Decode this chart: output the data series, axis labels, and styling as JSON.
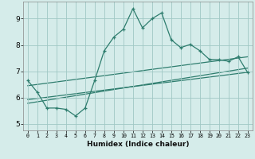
{
  "xlabel": "Humidex (Indice chaleur)",
  "background_color": "#d5ecea",
  "grid_color": "#a0c8c4",
  "line_color": "#2e7d6e",
  "xlim": [
    -0.5,
    23.5
  ],
  "ylim": [
    4.75,
    9.65
  ],
  "xticks": [
    0,
    1,
    2,
    3,
    4,
    5,
    6,
    7,
    8,
    9,
    10,
    11,
    12,
    13,
    14,
    15,
    16,
    17,
    18,
    19,
    20,
    21,
    22,
    23
  ],
  "yticks": [
    5,
    6,
    7,
    8,
    9
  ],
  "line1_x": [
    0,
    1,
    2,
    3,
    4,
    5,
    6,
    7,
    8,
    9,
    10,
    11,
    12,
    13,
    14,
    15,
    16,
    17,
    18,
    19,
    20,
    21,
    22,
    23
  ],
  "line1_y": [
    6.65,
    6.2,
    5.6,
    5.6,
    5.55,
    5.3,
    5.6,
    6.65,
    7.78,
    8.3,
    8.6,
    9.38,
    8.65,
    9.0,
    9.22,
    8.2,
    7.9,
    8.02,
    7.78,
    7.45,
    7.44,
    7.38,
    7.55,
    6.95
  ],
  "line2_x": [
    0,
    23
  ],
  "line2_y": [
    5.92,
    6.96
  ],
  "line3_x": [
    0,
    23
  ],
  "line3_y": [
    6.45,
    7.55
  ],
  "line4_x": [
    0,
    23
  ],
  "line4_y": [
    5.78,
    7.12
  ]
}
